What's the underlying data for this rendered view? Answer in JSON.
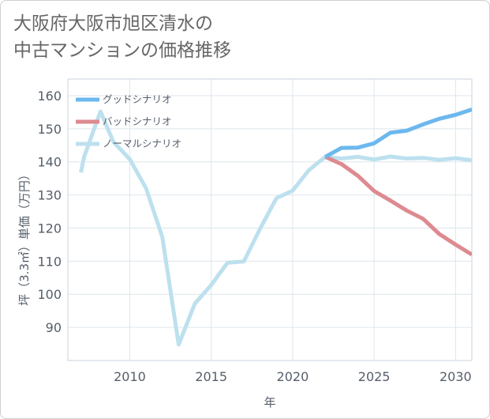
{
  "chart_data": {
    "type": "line",
    "title_lines": [
      "大阪府大阪市旭区清水の",
      "中古マンションの価格推移"
    ],
    "xlabel": "年",
    "ylabel": "坪（3.3㎡）単価（万円）",
    "xlim": [
      2006.2,
      2031
    ],
    "ylim": [
      80,
      165
    ],
    "xticks": [
      2010,
      2015,
      2020,
      2025,
      2030
    ],
    "xtick_labels": [
      "2010",
      "2015",
      "2020",
      "2025",
      "2030"
    ],
    "yticks": [
      90,
      100,
      110,
      120,
      130,
      140,
      150,
      160
    ],
    "ytick_labels": [
      "90",
      "100",
      "110",
      "120",
      "130",
      "140",
      "150",
      "160"
    ],
    "grid": true,
    "legend_position": "top-left",
    "series": [
      {
        "name": "グッドシナリオ",
        "color": "#6cb8ee",
        "x": [
          2022,
          2023,
          2024,
          2025,
          2026,
          2027,
          2028,
          2029,
          2030,
          2031
        ],
        "y": [
          141.5,
          144.2,
          144.3,
          145.6,
          148.8,
          149.4,
          151.3,
          153.0,
          154.2,
          155.8
        ]
      },
      {
        "name": "バッドシナリオ",
        "color": "#dd8a90",
        "x": [
          2022,
          2023,
          2024,
          2025,
          2026,
          2027,
          2028,
          2029,
          2030,
          2031
        ],
        "y": [
          141.5,
          139.3,
          135.8,
          131.2,
          128.3,
          125.3,
          122.8,
          118.2,
          115.0,
          112.0
        ]
      },
      {
        "name": "ノーマルシナリオ",
        "color": "#bde0ee",
        "x": [
          2007,
          2007.2,
          2008.2,
          2009,
          2010,
          2011,
          2012,
          2013,
          2014,
          2015,
          2016,
          2017,
          2018,
          2019,
          2020,
          2021,
          2022,
          2023,
          2024,
          2025,
          2026,
          2027,
          2028,
          2029,
          2030,
          2031
        ],
        "y": [
          136.8,
          141.5,
          155.2,
          146.0,
          140.8,
          132.0,
          117.3,
          84.8,
          97.2,
          102.8,
          109.5,
          109.9,
          119.8,
          129.0,
          131.3,
          137.5,
          141.5,
          141.0,
          141.5,
          140.7,
          141.6,
          141.0,
          141.2,
          140.6,
          141.1,
          140.5
        ]
      }
    ]
  }
}
